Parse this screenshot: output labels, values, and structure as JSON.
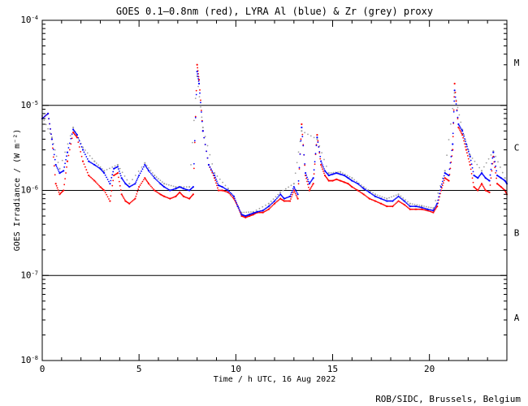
{
  "chart_data": {
    "type": "scatter",
    "title": "GOES 0.1–0.8nm (red), LYRA Al (blue) & Zr (grey) proxy",
    "xlabel": "Time / h UTC, 16 Aug 2022",
    "ylabel": "GOES Irradiance / (W m⁻²)",
    "xlim": [
      0,
      24
    ],
    "ylim": [
      1e-08,
      0.0001
    ],
    "yscale": "log",
    "x_ticks": [
      0,
      5,
      10,
      15,
      20
    ],
    "x_tick_labels": [
      "0",
      "5",
      "10",
      "15",
      "20"
    ],
    "y_ticks": [
      {
        "value": 0.0001,
        "base": "10",
        "exp": "-4"
      },
      {
        "value": 1e-05,
        "base": "10",
        "exp": "-5"
      },
      {
        "value": 1e-06,
        "base": "10",
        "exp": "-6"
      },
      {
        "value": 1e-07,
        "base": "10",
        "exp": "-7"
      },
      {
        "value": 1e-08,
        "base": "10",
        "exp": "-8"
      }
    ],
    "flare_class_lines": [
      1e-05,
      1e-06,
      1e-07
    ],
    "flare_classes": [
      {
        "label": "M",
        "value": 3.2e-05
      },
      {
        "label": "C",
        "value": 3.2e-06
      },
      {
        "label": "B",
        "value": 3.2e-07
      },
      {
        "label": "A",
        "value": 3.2e-08
      }
    ],
    "series": [
      {
        "name": "GOES 0.1-0.8nm",
        "color": "#ff0000",
        "points": [
          [
            0.0,
            7e-06
          ],
          [
            0.3,
            8e-06
          ],
          [
            0.5,
            4e-06
          ],
          [
            0.7,
            1.2e-06
          ],
          [
            0.9,
            9e-07
          ],
          [
            1.1,
            1e-06
          ],
          [
            1.3,
            2.2e-06
          ],
          [
            1.6,
            4.8e-06
          ],
          [
            1.8,
            4.2e-06
          ],
          [
            2.1,
            2.2e-06
          ],
          [
            2.4,
            1.5e-06
          ],
          [
            2.7,
            1.3e-06
          ],
          [
            3.0,
            1.1e-06
          ],
          [
            3.2,
            1e-06
          ],
          [
            3.5,
            7.5e-07
          ],
          [
            3.7,
            1.5e-06
          ],
          [
            3.9,
            1.6e-06
          ],
          [
            4.1,
            9e-07
          ],
          [
            4.3,
            7.5e-07
          ],
          [
            4.5,
            7e-07
          ],
          [
            4.8,
            8e-07
          ],
          [
            5.0,
            1.1e-06
          ],
          [
            5.3,
            1.4e-06
          ],
          [
            5.5,
            1.2e-06
          ],
          [
            5.8,
            1e-06
          ],
          [
            6.1,
            9e-07
          ],
          [
            6.3,
            8.5e-07
          ],
          [
            6.6,
            8e-07
          ],
          [
            6.9,
            8.5e-07
          ],
          [
            7.1,
            9.5e-07
          ],
          [
            7.3,
            8.5e-07
          ],
          [
            7.6,
            8e-07
          ],
          [
            7.8,
            9e-07
          ],
          [
            8.0,
            3e-05
          ],
          [
            8.1,
            2e-05
          ],
          [
            8.3,
            5e-06
          ],
          [
            8.6,
            2e-06
          ],
          [
            8.9,
            1.4e-06
          ],
          [
            9.1,
            1e-06
          ],
          [
            9.3,
            1e-06
          ],
          [
            9.6,
            9.5e-07
          ],
          [
            9.9,
            8e-07
          ],
          [
            10.1,
            6.5e-07
          ],
          [
            10.3,
            5e-07
          ],
          [
            10.5,
            4.8e-07
          ],
          [
            10.7,
            5e-07
          ],
          [
            10.9,
            5.2e-07
          ],
          [
            11.1,
            5.5e-07
          ],
          [
            11.4,
            5.5e-07
          ],
          [
            11.7,
            6e-07
          ],
          [
            12.0,
            7e-07
          ],
          [
            12.3,
            8e-07
          ],
          [
            12.5,
            7.5e-07
          ],
          [
            12.8,
            7.5e-07
          ],
          [
            13.0,
            1e-06
          ],
          [
            13.2,
            8e-07
          ],
          [
            13.4,
            6e-06
          ],
          [
            13.6,
            1.5e-06
          ],
          [
            13.8,
            1e-06
          ],
          [
            14.0,
            1.2e-06
          ],
          [
            14.2,
            4.5e-06
          ],
          [
            14.4,
            2e-06
          ],
          [
            14.6,
            1.5e-06
          ],
          [
            14.8,
            1.3e-06
          ],
          [
            15.0,
            1.3e-06
          ],
          [
            15.2,
            1.35e-06
          ],
          [
            15.4,
            1.3e-06
          ],
          [
            15.6,
            1.25e-06
          ],
          [
            15.8,
            1.2e-06
          ],
          [
            16.0,
            1.1e-06
          ],
          [
            16.3,
            1e-06
          ],
          [
            16.6,
            9e-07
          ],
          [
            16.9,
            8e-07
          ],
          [
            17.2,
            7.5e-07
          ],
          [
            17.5,
            7e-07
          ],
          [
            17.8,
            6.5e-07
          ],
          [
            18.1,
            6.5e-07
          ],
          [
            18.4,
            7.5e-07
          ],
          [
            18.7,
            6.8e-07
          ],
          [
            19.0,
            6e-07
          ],
          [
            19.3,
            6e-07
          ],
          [
            19.6,
            6e-07
          ],
          [
            19.9,
            5.8e-07
          ],
          [
            20.2,
            5.5e-07
          ],
          [
            20.4,
            6.5e-07
          ],
          [
            20.6,
            1e-06
          ],
          [
            20.8,
            1.4e-06
          ],
          [
            21.0,
            1.3e-06
          ],
          [
            21.2,
            3e-06
          ],
          [
            21.3,
            1.8e-05
          ],
          [
            21.5,
            5.5e-06
          ],
          [
            21.7,
            4.5e-06
          ],
          [
            21.9,
            3e-06
          ],
          [
            22.1,
            2e-06
          ],
          [
            22.3,
            1.1e-06
          ],
          [
            22.5,
            1e-06
          ],
          [
            22.7,
            1.2e-06
          ],
          [
            22.9,
            1e-06
          ],
          [
            23.1,
            9.5e-07
          ],
          [
            23.3,
            2.5e-06
          ],
          [
            23.5,
            1.2e-06
          ],
          [
            23.7,
            1.1e-06
          ],
          [
            23.9,
            1e-06
          ],
          [
            24.0,
            9e-07
          ]
        ]
      },
      {
        "name": "LYRA Al proxy",
        "color": "#0000ff",
        "points": [
          [
            0.0,
            7e-06
          ],
          [
            0.3,
            8e-06
          ],
          [
            0.5,
            4e-06
          ],
          [
            0.7,
            2e-06
          ],
          [
            0.9,
            1.6e-06
          ],
          [
            1.1,
            1.7e-06
          ],
          [
            1.3,
            2.8e-06
          ],
          [
            1.6,
            5.2e-06
          ],
          [
            1.8,
            4.5e-06
          ],
          [
            2.1,
            3e-06
          ],
          [
            2.4,
            2.2e-06
          ],
          [
            2.7,
            2e-06
          ],
          [
            3.0,
            1.8e-06
          ],
          [
            3.2,
            1.6e-06
          ],
          [
            3.5,
            1.2e-06
          ],
          [
            3.7,
            1.8e-06
          ],
          [
            3.9,
            1.9e-06
          ],
          [
            4.1,
            1.4e-06
          ],
          [
            4.3,
            1.2e-06
          ],
          [
            4.5,
            1.1e-06
          ],
          [
            4.8,
            1.2e-06
          ],
          [
            5.0,
            1.5e-06
          ],
          [
            5.3,
            2e-06
          ],
          [
            5.5,
            1.7e-06
          ],
          [
            5.8,
            1.4e-06
          ],
          [
            6.1,
            1.2e-06
          ],
          [
            6.3,
            1.1e-06
          ],
          [
            6.6,
            1e-06
          ],
          [
            6.9,
            1.05e-06
          ],
          [
            7.1,
            1.1e-06
          ],
          [
            7.3,
            1.05e-06
          ],
          [
            7.6,
            1e-06
          ],
          [
            7.8,
            1.1e-06
          ],
          [
            8.0,
            2.5e-05
          ],
          [
            8.1,
            1.8e-05
          ],
          [
            8.3,
            5e-06
          ],
          [
            8.6,
            2e-06
          ],
          [
            8.9,
            1.5e-06
          ],
          [
            9.1,
            1.15e-06
          ],
          [
            9.3,
            1.1e-06
          ],
          [
            9.6,
            1e-06
          ],
          [
            9.9,
            8.5e-07
          ],
          [
            10.1,
            6.5e-07
          ],
          [
            10.3,
            5.2e-07
          ],
          [
            10.5,
            5e-07
          ],
          [
            10.7,
            5.2e-07
          ],
          [
            10.9,
            5.4e-07
          ],
          [
            11.1,
            5.6e-07
          ],
          [
            11.4,
            5.8e-07
          ],
          [
            11.7,
            6.5e-07
          ],
          [
            12.0,
            7.5e-07
          ],
          [
            12.3,
            9e-07
          ],
          [
            12.5,
            8e-07
          ],
          [
            12.8,
            8.5e-07
          ],
          [
            13.0,
            1.1e-06
          ],
          [
            13.2,
            9e-07
          ],
          [
            13.4,
            5.5e-06
          ],
          [
            13.6,
            1.6e-06
          ],
          [
            13.8,
            1.2e-06
          ],
          [
            14.0,
            1.4e-06
          ],
          [
            14.2,
            4.2e-06
          ],
          [
            14.4,
            2.2e-06
          ],
          [
            14.6,
            1.7e-06
          ],
          [
            14.8,
            1.5e-06
          ],
          [
            15.0,
            1.55e-06
          ],
          [
            15.2,
            1.6e-06
          ],
          [
            15.4,
            1.55e-06
          ],
          [
            15.6,
            1.5e-06
          ],
          [
            15.8,
            1.4e-06
          ],
          [
            16.0,
            1.3e-06
          ],
          [
            16.3,
            1.2e-06
          ],
          [
            16.6,
            1.05e-06
          ],
          [
            16.9,
            9.5e-07
          ],
          [
            17.2,
            8.5e-07
          ],
          [
            17.5,
            8e-07
          ],
          [
            17.8,
            7.5e-07
          ],
          [
            18.1,
            7.5e-07
          ],
          [
            18.4,
            8.5e-07
          ],
          [
            18.7,
            7.5e-07
          ],
          [
            19.0,
            6.5e-07
          ],
          [
            19.3,
            6.5e-07
          ],
          [
            19.6,
            6.3e-07
          ],
          [
            19.9,
            6e-07
          ],
          [
            20.2,
            5.8e-07
          ],
          [
            20.4,
            7e-07
          ],
          [
            20.6,
            1.1e-06
          ],
          [
            20.8,
            1.6e-06
          ],
          [
            21.0,
            1.5e-06
          ],
          [
            21.2,
            3.5e-06
          ],
          [
            21.3,
            1.5e-05
          ],
          [
            21.5,
            6e-06
          ],
          [
            21.7,
            5e-06
          ],
          [
            21.9,
            3.5e-06
          ],
          [
            22.1,
            2.5e-06
          ],
          [
            22.3,
            1.5e-06
          ],
          [
            22.5,
            1.4e-06
          ],
          [
            22.7,
            1.6e-06
          ],
          [
            22.9,
            1.4e-06
          ],
          [
            23.1,
            1.3e-06
          ],
          [
            23.3,
            2.8e-06
          ],
          [
            23.5,
            1.5e-06
          ],
          [
            23.7,
            1.4e-06
          ],
          [
            23.9,
            1.3e-06
          ],
          [
            24.0,
            1.2e-06
          ]
        ]
      },
      {
        "name": "LYRA Zr proxy",
        "color": "#a0a0a0",
        "points": [
          [
            0.0,
            7.5e-06
          ],
          [
            0.5,
            4.2e-06
          ],
          [
            0.9,
            1.8e-06
          ],
          [
            1.6,
            5.5e-06
          ],
          [
            2.1,
            3.2e-06
          ],
          [
            2.7,
            2.2e-06
          ],
          [
            3.2,
            1.7e-06
          ],
          [
            3.9,
            2e-06
          ],
          [
            4.5,
            1.2e-06
          ],
          [
            5.3,
            2.1e-06
          ],
          [
            5.8,
            1.5e-06
          ],
          [
            6.3,
            1.2e-06
          ],
          [
            6.9,
            1.1e-06
          ],
          [
            7.6,
            1.1e-06
          ],
          [
            8.0,
            2.2e-05
          ],
          [
            8.3,
            5.5e-06
          ],
          [
            8.9,
            1.6e-06
          ],
          [
            9.6,
            1.05e-06
          ],
          [
            10.3,
            5.5e-07
          ],
          [
            10.9,
            5.6e-07
          ],
          [
            11.7,
            7e-07
          ],
          [
            12.3,
            9.5e-07
          ],
          [
            13.0,
            1.2e-06
          ],
          [
            13.4,
            5e-06
          ],
          [
            14.2,
            4e-06
          ],
          [
            14.8,
            1.6e-06
          ],
          [
            15.4,
            1.65e-06
          ],
          [
            16.0,
            1.4e-06
          ],
          [
            16.6,
            1.1e-06
          ],
          [
            17.2,
            9e-07
          ],
          [
            17.8,
            8e-07
          ],
          [
            18.4,
            9e-07
          ],
          [
            19.0,
            7e-07
          ],
          [
            19.6,
            6.6e-07
          ],
          [
            20.2,
            6.2e-07
          ],
          [
            20.8,
            1.7e-06
          ],
          [
            21.3,
            1.4e-05
          ],
          [
            21.7,
            5.2e-06
          ],
          [
            22.1,
            2.6e-06
          ],
          [
            22.7,
            1.7e-06
          ],
          [
            23.3,
            2.9e-06
          ],
          [
            23.9,
            1.4e-06
          ]
        ]
      }
    ]
  },
  "credit": "ROB/SIDC, Brussels, Belgium"
}
